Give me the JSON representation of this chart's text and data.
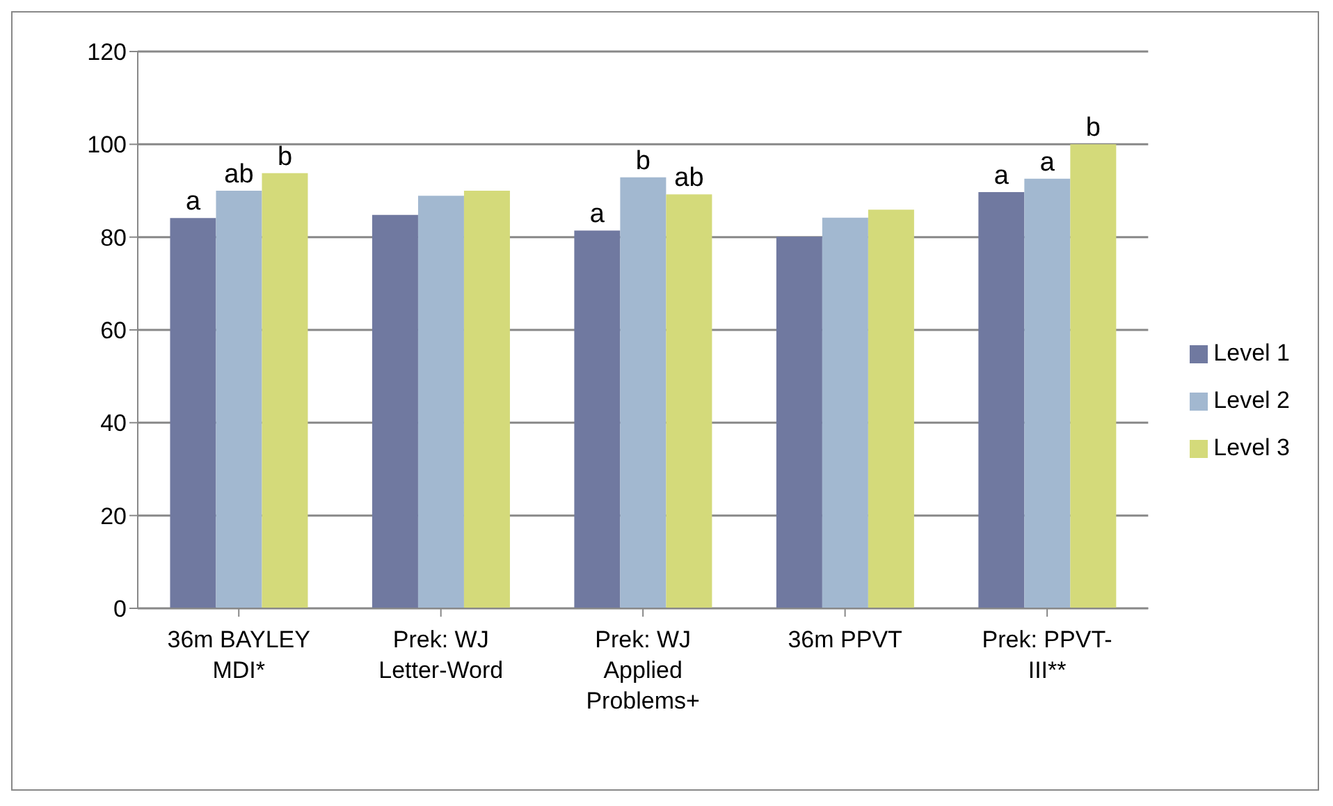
{
  "chart_data": {
    "type": "bar",
    "categories": [
      "36m BAYLEY MDI*",
      "Prek: WJ Letter-Word",
      "Prek: WJ Applied Problems+",
      "36m PPVT",
      "Prek: PPVT-III**"
    ],
    "series": [
      {
        "name": "Level 1",
        "color": "#7079a0",
        "values": [
          84.1,
          84.8,
          81.4,
          80.1,
          89.7
        ],
        "value_labels": [
          "a",
          null,
          "a",
          null,
          "a"
        ]
      },
      {
        "name": "Level 2",
        "color": "#a2b8d0",
        "values": [
          90.0,
          88.9,
          92.9,
          84.2,
          92.6
        ],
        "value_labels": [
          "ab",
          null,
          "b",
          null,
          "a"
        ]
      },
      {
        "name": "Level 3",
        "color": "#d4da7a",
        "values": [
          93.8,
          90.0,
          89.2,
          85.9,
          100.0
        ],
        "value_labels": [
          "b",
          null,
          "ab",
          null,
          "b"
        ]
      }
    ],
    "ylim": [
      0,
      120
    ],
    "yticks": [
      0,
      20,
      40,
      60,
      80,
      100,
      120
    ],
    "grid": "y",
    "legend": "right"
  }
}
